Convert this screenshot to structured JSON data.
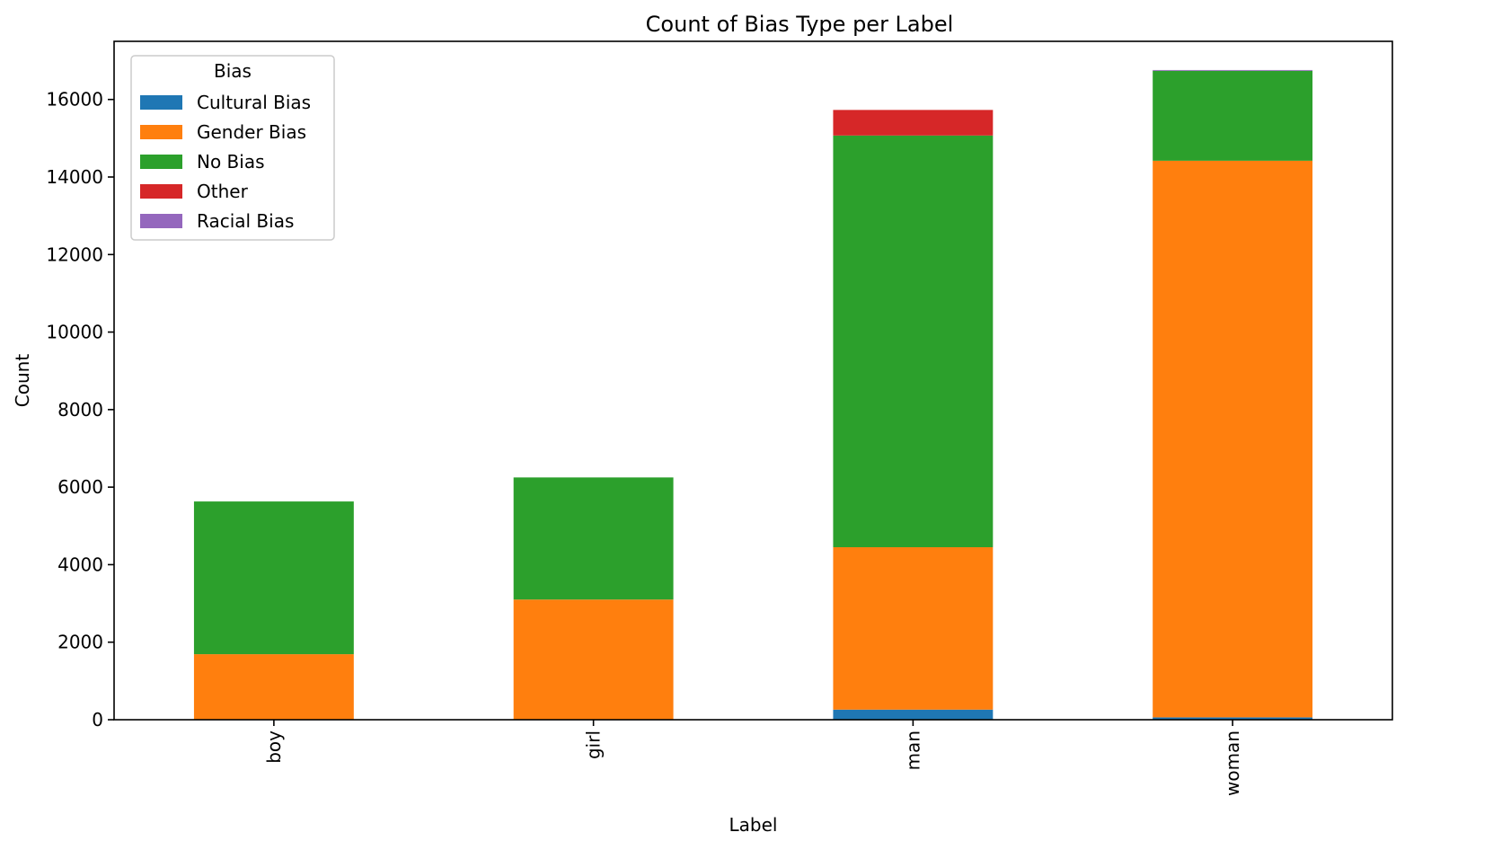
{
  "chart_data": {
    "type": "bar",
    "stacked": true,
    "title": "Count of Bias Type per Label",
    "xlabel": "Label",
    "ylabel": "Count",
    "categories": [
      "boy",
      "girl",
      "man",
      "woman"
    ],
    "ylim": [
      0,
      17500
    ],
    "yticks": [
      0,
      2000,
      4000,
      6000,
      8000,
      10000,
      12000,
      14000,
      16000
    ],
    "grid": false,
    "legend": {
      "title": "Bias",
      "placement": "top-left"
    },
    "series": [
      {
        "name": "Cultural Bias",
        "color": "#1f77b4",
        "values": [
          0,
          0,
          260,
          60
        ]
      },
      {
        "name": "Gender Bias",
        "color": "#ff7f0e",
        "values": [
          1690,
          3100,
          4190,
          14360
        ]
      },
      {
        "name": "No Bias",
        "color": "#2ca02c",
        "values": [
          3940,
          3150,
          10620,
          2320
        ]
      },
      {
        "name": "Other",
        "color": "#d62728",
        "values": [
          0,
          0,
          660,
          0
        ]
      },
      {
        "name": "Racial Bias",
        "color": "#9467bd",
        "values": [
          0,
          0,
          0,
          20
        ]
      }
    ]
  }
}
